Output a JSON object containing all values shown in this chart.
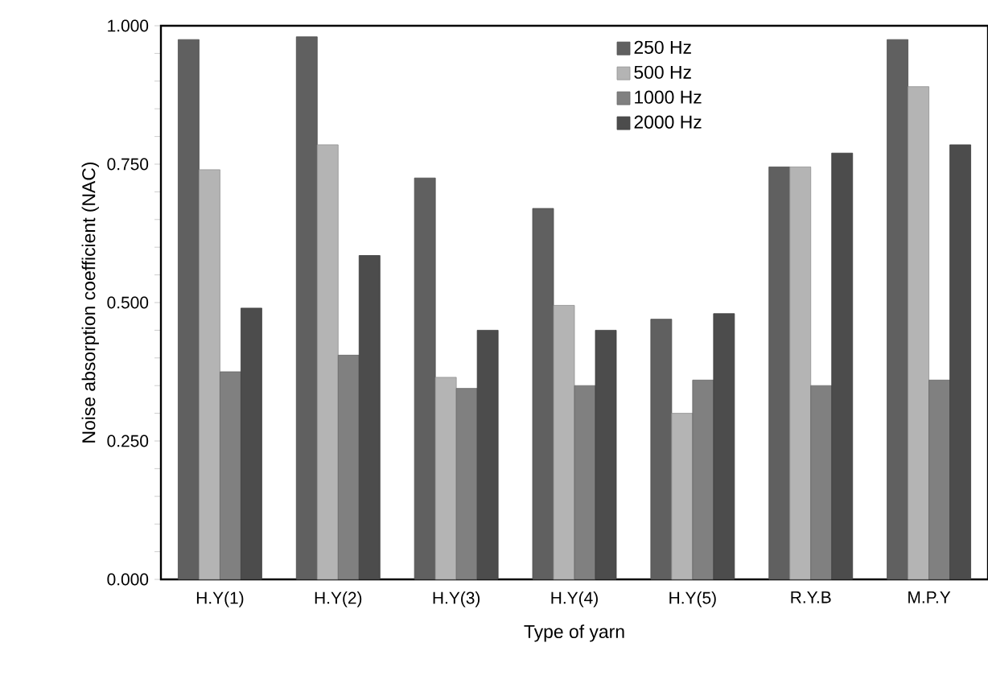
{
  "chart_data": {
    "type": "bar",
    "xlabel": "Type of yarn",
    "ylabel": "Noise absorption coefficient (NAC)",
    "categories": [
      "H.Y(1)",
      "H.Y(2)",
      "H.Y(3)",
      "H.Y(4)",
      "H.Y(5)",
      "R.Y.B",
      "M.P.Y"
    ],
    "series": [
      {
        "name": "250 Hz",
        "color": "#606060",
        "values": [
          0.975,
          0.98,
          0.725,
          0.67,
          0.47,
          0.745,
          0.975
        ]
      },
      {
        "name": "500 Hz",
        "color": "#b4b4b4",
        "values": [
          0.74,
          0.785,
          0.365,
          0.495,
          0.3,
          0.745,
          0.89
        ]
      },
      {
        "name": "1000 Hz",
        "color": "#808080",
        "values": [
          0.375,
          0.405,
          0.345,
          0.35,
          0.36,
          0.35,
          0.36
        ]
      },
      {
        "name": "2000 Hz",
        "color": "#4c4c4c",
        "values": [
          0.49,
          0.585,
          0.45,
          0.45,
          0.48,
          0.77,
          0.785
        ]
      }
    ],
    "ylim": [
      0,
      1
    ],
    "yticks": [
      {
        "value": 0,
        "label": "0.000"
      },
      {
        "value": 0.05,
        "label": null
      },
      {
        "value": 0.1,
        "label": null
      },
      {
        "value": 0.15,
        "label": null
      },
      {
        "value": 0.2,
        "label": null
      },
      {
        "value": 0.25,
        "label": "0.250"
      },
      {
        "value": 0.3,
        "label": null
      },
      {
        "value": 0.35,
        "label": null
      },
      {
        "value": 0.4,
        "label": null
      },
      {
        "value": 0.45,
        "label": null
      },
      {
        "value": 0.5,
        "label": "0.500"
      },
      {
        "value": 0.55,
        "label": null
      },
      {
        "value": 0.6,
        "label": null
      },
      {
        "value": 0.65,
        "label": null
      },
      {
        "value": 0.7,
        "label": null
      },
      {
        "value": 0.75,
        "label": "0.750"
      },
      {
        "value": 0.8,
        "label": null
      },
      {
        "value": 0.85,
        "label": null
      },
      {
        "value": 0.9,
        "label": null
      },
      {
        "value": 0.95,
        "label": null
      },
      {
        "value": 1,
        "label": "1.000"
      }
    ],
    "legend": "top",
    "grid": false
  }
}
